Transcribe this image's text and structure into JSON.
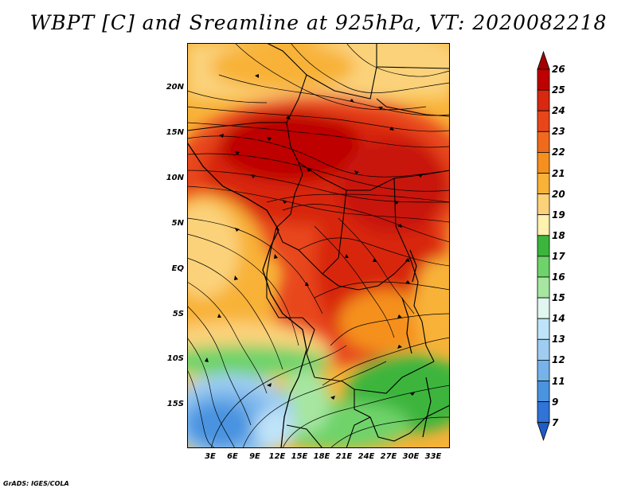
{
  "title": "WBPT [C] and Sreamline at 925hPa, VT: 2020082218",
  "credit": "GrADS: IGES/COLA",
  "map": {
    "variable": "Wet-bulb potential temperature",
    "level": "925hPa",
    "overlay": "streamlines",
    "lat_labels": [
      "20N",
      "15N",
      "10N",
      "5N",
      "EQ",
      "5S",
      "10S",
      "15S"
    ],
    "lon_labels": [
      "3E",
      "6E",
      "9E",
      "12E",
      "15E",
      "18E",
      "21E",
      "24E",
      "27E",
      "30E",
      "33E"
    ]
  },
  "colorbar": {
    "labels": [
      "26",
      "25",
      "24",
      "23",
      "22",
      "21",
      "20",
      "19",
      "18",
      "17",
      "16",
      "15",
      "14",
      "13",
      "12",
      "11",
      "9",
      "7"
    ],
    "colors": [
      "#a50000",
      "#be0000",
      "#d82810",
      "#e8461a",
      "#f06a1e",
      "#f5901f",
      "#f8b238",
      "#fbd27a",
      "#fff1b0",
      "#3cb53c",
      "#6fd36a",
      "#a6e6a1",
      "#e0f7f0",
      "#bfe3f8",
      "#9fcdf2",
      "#76b3ea",
      "#4a93e0",
      "#2f74d6",
      "#1f5cc8"
    ]
  }
}
